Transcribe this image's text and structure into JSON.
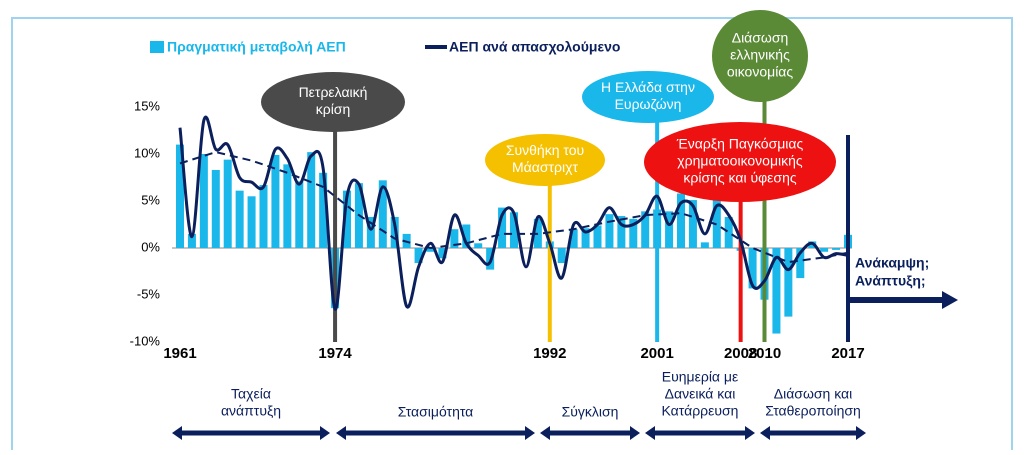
{
  "chart_data": {
    "type": "bar-line",
    "legend": [
      "Πραγματική μεταβολή ΑΕΠ",
      "ΑΕΠ ανά απασχολούμενο"
    ],
    "x": [
      1961,
      1962,
      1963,
      1964,
      1965,
      1966,
      1967,
      1968,
      1969,
      1970,
      1971,
      1972,
      1973,
      1974,
      1975,
      1976,
      1977,
      1978,
      1979,
      1980,
      1981,
      1982,
      1983,
      1984,
      1985,
      1986,
      1987,
      1988,
      1989,
      1990,
      1991,
      1992,
      1993,
      1994,
      1995,
      1996,
      1997,
      1998,
      1999,
      2000,
      2001,
      2002,
      2003,
      2004,
      2005,
      2006,
      2007,
      2008,
      2009,
      2010,
      2011,
      2012,
      2013,
      2014,
      2015,
      2016,
      2017
    ],
    "series": [
      {
        "name": "Πραγματική μεταβολή ΑΕΠ",
        "color": "#1ab7ea",
        "kind": "bar",
        "values": [
          11,
          1.5,
          10,
          8.3,
          9.4,
          6.1,
          5.5,
          6.7,
          9.9,
          8.9,
          7.1,
          10.2,
          8.0,
          -6.4,
          6.1,
          6.9,
          3.3,
          7.2,
          3.3,
          1.5,
          -1.6,
          -0.4,
          -1.1,
          2.0,
          2.5,
          0.5,
          -2.3,
          4.3,
          3.8,
          0,
          3.1,
          0.7,
          -1.6,
          2.0,
          2.1,
          2.4,
          3.6,
          3.4,
          3.1,
          3.9,
          4.1,
          3.9,
          5.8,
          5.1,
          0.6,
          5.7,
          3.3,
          -0.3,
          -4.3,
          -5.5,
          -9.1,
          -7.3,
          -3.2,
          0.7,
          -0.4,
          -0.2,
          1.4
        ]
      },
      {
        "name": "ΑΕΠ ανά απασχολούμενο",
        "color": "#0b1f5c",
        "kind": "line",
        "values": [
          12.8,
          1.2,
          13.6,
          10.5,
          11,
          7.5,
          7.0,
          6.5,
          10.5,
          9.5,
          6.8,
          9.8,
          8.5,
          -6.5,
          5.5,
          6.8,
          2.0,
          6.5,
          2.5,
          -6.2,
          -2,
          0.5,
          -1.5,
          3.5,
          0.5,
          -0.8,
          -1.5,
          3.5,
          3.7,
          -2.0,
          3.3,
          0.5,
          -3.2,
          2.5,
          1.7,
          2.5,
          4.3,
          2.5,
          2.5,
          3.5,
          5.5,
          2.5,
          4.8,
          4.5,
          1.5,
          4.5,
          3.5,
          0.8,
          -4.0,
          -3.5,
          -1.0,
          -2.3,
          -0.5,
          0.5,
          -1.0,
          -0.6,
          -0.8
        ]
      }
    ],
    "trend": {
      "color": "#0b1f5c",
      "style": "dashed",
      "x": [
        1961,
        1964,
        1967,
        1970,
        1973,
        1976,
        1979,
        1982,
        1985,
        1988,
        1991,
        1994,
        1997,
        2000,
        2003,
        2006,
        2009,
        2012,
        2015,
        2017
      ],
      "values": [
        9,
        10.2,
        9.3,
        8,
        6.5,
        3.5,
        1,
        0,
        0.5,
        1.5,
        1.5,
        2,
        2.8,
        3.5,
        3.7,
        2.5,
        0,
        -1.5,
        -1,
        -0.5
      ]
    },
    "xlim": [
      1961,
      2017
    ],
    "xticks": [
      1961,
      1974,
      1992,
      2001,
      2008,
      2010,
      2017
    ],
    "ylim": [
      -10,
      15
    ],
    "yticks": [
      {
        "value": -10,
        "label": "-10%"
      },
      {
        "value": -5,
        "label": "-5%"
      },
      {
        "value": 0,
        "label": "0%"
      },
      {
        "value": 5,
        "label": "5%"
      },
      {
        "value": 10,
        "label": "10%"
      },
      {
        "value": 15,
        "label": "15%"
      }
    ],
    "events": [
      {
        "year": 1974,
        "color": "#4a4a4a",
        "lines": [
          "Πετρελαική",
          "κρίση"
        ]
      },
      {
        "year": 1992,
        "color": "#f5c000",
        "lines": [
          "Συνθήκη του",
          "Μάαστριχτ"
        ]
      },
      {
        "year": 2001,
        "color": "#1ab7ea",
        "lines": [
          "Η Ελλάδα στην",
          "Ευρωζώνη"
        ]
      },
      {
        "year": 2008,
        "color": "#ee1111",
        "lines": [
          "Έναρξη Παγκόσμιας",
          "χρηματοοικονομικής",
          "κρίσης και ύφεσης"
        ]
      },
      {
        "year": 2010,
        "color": "#5a8a36",
        "lines": [
          "Διάσωση",
          "ελληνικής",
          "οικονομίας"
        ]
      }
    ],
    "outlook": [
      "Ανάκαμψη;",
      "Ανάπτυξη;"
    ],
    "periods": [
      [
        "Ταχεία",
        "ανάπτυξη"
      ],
      [
        "Στασιμότητα"
      ],
      [
        "Σύγκλιση"
      ],
      [
        "Ευημερία με",
        "Δανεικά και",
        "Κατάρρευση"
      ],
      [
        "Διάσωση και",
        "Σταθεροποίηση"
      ]
    ]
  }
}
